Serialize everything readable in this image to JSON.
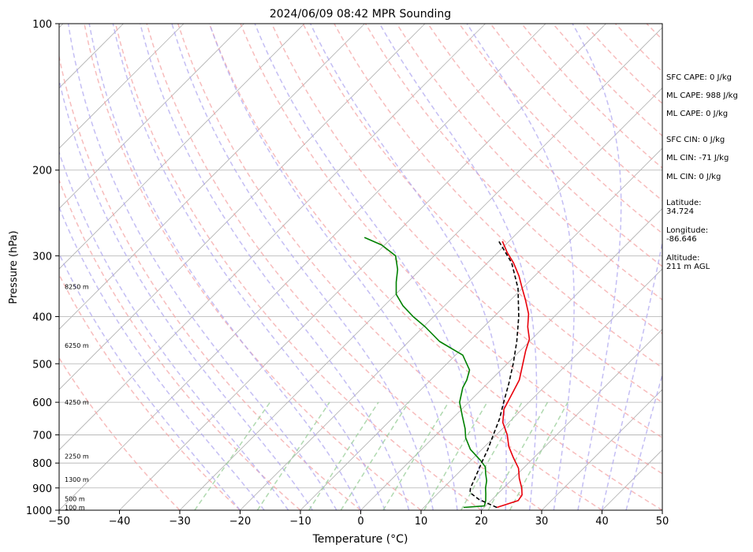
{
  "chart_data": {
    "type": "line",
    "title": "2024/06/09 08:42 MPR Sounding",
    "xlabel": "Temperature (°C)",
    "ylabel": "Pressure (hPa)",
    "xlim": [
      -50,
      50
    ],
    "ylim": [
      1000,
      100
    ],
    "y_scale": "log",
    "x_ticks": [
      -50,
      -40,
      -30,
      -20,
      -10,
      0,
      10,
      20,
      30,
      40,
      50
    ],
    "y_ticks": [
      100,
      200,
      300,
      400,
      500,
      600,
      700,
      800,
      900,
      1000
    ],
    "grid": "horizontal isobars and skewed isotherms",
    "height_labels": [
      {
        "label": "100 m",
        "p": 987
      },
      {
        "label": "500 m",
        "p": 948
      },
      {
        "label": "1300 m",
        "p": 865
      },
      {
        "label": "2250 m",
        "p": 775
      },
      {
        "label": "4250 m",
        "p": 600
      },
      {
        "label": "6250 m",
        "p": 458
      },
      {
        "label": "8250 m",
        "p": 347
      }
    ],
    "series": [
      {
        "color": "#e8000b",
        "points": [
          {
            "t": 22.1,
            "p": 987
          },
          {
            "t": 24.5,
            "p": 955
          },
          {
            "t": 24.2,
            "p": 930
          },
          {
            "t": 23.0,
            "p": 900
          },
          {
            "t": 21.0,
            "p": 860
          },
          {
            "t": 19.2,
            "p": 820
          },
          {
            "t": 16.6,
            "p": 780
          },
          {
            "t": 14.0,
            "p": 740
          },
          {
            "t": 11.8,
            "p": 700
          },
          {
            "t": 9.0,
            "p": 660
          },
          {
            "t": 7.0,
            "p": 620
          },
          {
            "t": 5.9,
            "p": 580
          },
          {
            "t": 4.7,
            "p": 540
          },
          {
            "t": 2.6,
            "p": 500
          },
          {
            "t": 0.9,
            "p": 470
          },
          {
            "t": -0.4,
            "p": 445
          },
          {
            "t": -2.7,
            "p": 420
          },
          {
            "t": -4.7,
            "p": 395
          },
          {
            "t": -7.5,
            "p": 370
          },
          {
            "t": -10.0,
            "p": 350
          },
          {
            "t": -12.6,
            "p": 330
          },
          {
            "t": -15.7,
            "p": 310
          },
          {
            "t": -18.5,
            "p": 295
          },
          {
            "t": -21.1,
            "p": 280
          }
        ]
      },
      {
        "color": "#008000",
        "points": [
          {
            "t": 16.6,
            "p": 987
          },
          {
            "t": 19.8,
            "p": 980
          },
          {
            "t": 19.1,
            "p": 955
          },
          {
            "t": 18.0,
            "p": 925
          },
          {
            "t": 17.0,
            "p": 900
          },
          {
            "t": 16.0,
            "p": 870
          },
          {
            "t": 14.6,
            "p": 840
          },
          {
            "t": 13.5,
            "p": 815
          },
          {
            "t": 11.6,
            "p": 790
          },
          {
            "t": 8.1,
            "p": 750
          },
          {
            "t": 5.4,
            "p": 710
          },
          {
            "t": 3.8,
            "p": 680
          },
          {
            "t": 1.2,
            "p": 640
          },
          {
            "t": -1.5,
            "p": 600
          },
          {
            "t": -3.4,
            "p": 560
          },
          {
            "t": -4.0,
            "p": 540
          },
          {
            "t": -5.2,
            "p": 515
          },
          {
            "t": -8.8,
            "p": 480
          },
          {
            "t": -14.9,
            "p": 450
          },
          {
            "t": -19.7,
            "p": 420
          },
          {
            "t": -23.4,
            "p": 400
          },
          {
            "t": -26.9,
            "p": 380
          },
          {
            "t": -29.9,
            "p": 360
          },
          {
            "t": -31.9,
            "p": 340
          },
          {
            "t": -33.8,
            "p": 320
          },
          {
            "t": -36.4,
            "p": 300
          },
          {
            "t": -40.5,
            "p": 285
          },
          {
            "t": -44.6,
            "p": 275
          }
        ]
      },
      {
        "color": "#000000",
        "dashed": true,
        "points": [
          {
            "t": 22.1,
            "p": 987
          },
          {
            "t": 17.8,
            "p": 950
          },
          {
            "t": 15.2,
            "p": 920
          },
          {
            "t": 14.5,
            "p": 900
          },
          {
            "t": 13.4,
            "p": 850
          },
          {
            "t": 12.2,
            "p": 800
          },
          {
            "t": 11.0,
            "p": 750
          },
          {
            "t": 9.5,
            "p": 700
          },
          {
            "t": 7.9,
            "p": 650
          },
          {
            "t": 5.8,
            "p": 600
          },
          {
            "t": 3.6,
            "p": 550
          },
          {
            "t": 1.0,
            "p": 500
          },
          {
            "t": -2.1,
            "p": 450
          },
          {
            "t": -5.9,
            "p": 400
          },
          {
            "t": -10.7,
            "p": 350
          },
          {
            "t": -16.0,
            "p": 310
          },
          {
            "t": -21.7,
            "p": 280
          }
        ]
      }
    ]
  },
  "info": {
    "sfc_cape": "SFC CAPE: 0 J/kg",
    "ml_cape_1": "ML CAPE: 988 J/kg",
    "ml_cape_2": "ML CAPE: 0 J/kg",
    "sfc_cin": "SFC CIN: 0 J/kg",
    "ml_cin_1": "ML CIN: -71 J/kg",
    "ml_cin_2": "ML CIN: 0 J/kg",
    "latitude_label": "Latitude:",
    "latitude_value": "34.724",
    "longitude_label": "Longitude:",
    "longitude_value": "-86.646",
    "altitude_label": "Altitude:",
    "altitude_value": "211 m AGL"
  },
  "colors": {
    "temperature": "#e8000b",
    "dewpoint": "#008000",
    "parcel": "#000000",
    "dry_adiabats": "#f4a6a6",
    "moist_adiabats": "#b0a8f0",
    "mixing_ratio": "#9ccf9c",
    "isotherms": "#b0b0b0"
  }
}
